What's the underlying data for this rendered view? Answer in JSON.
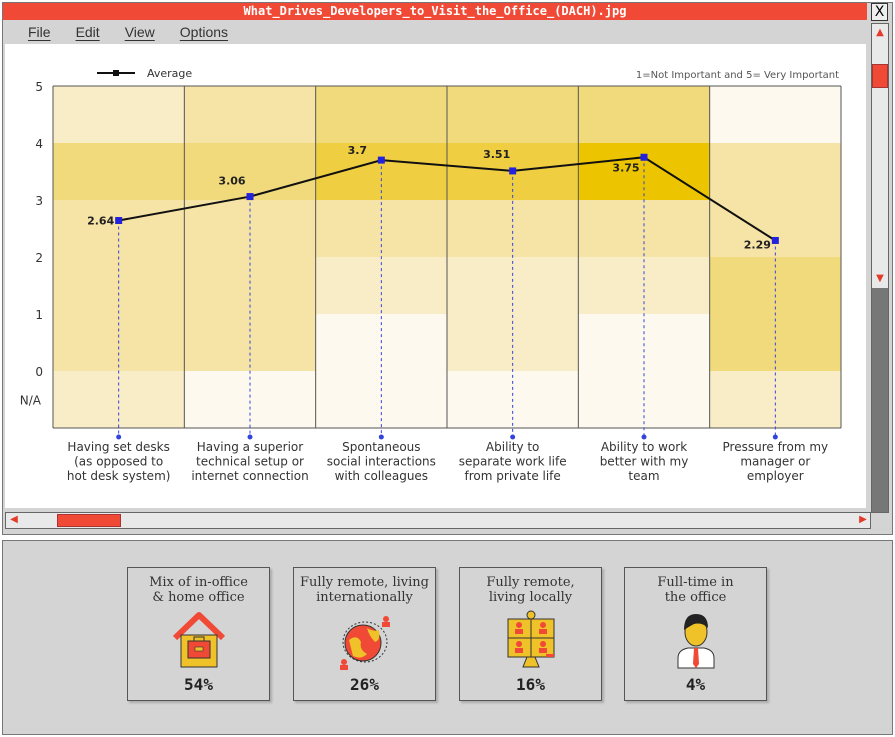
{
  "window": {
    "title": "What_Drives_Developers_to_Visit_the_Office_(DACH).jpg",
    "close": "X"
  },
  "menu": [
    "File",
    "Edit",
    "View",
    "Options"
  ],
  "chart_data": {
    "type": "line",
    "legend": "Average",
    "legend_position": "top-left",
    "note": "1=Not Important and 5= Very Important",
    "y_ticks": [
      "5",
      "4",
      "3",
      "2",
      "1",
      "0",
      "N/A"
    ],
    "ylim": [
      0,
      5
    ],
    "categories": [
      [
        "Having set desks",
        "(as opposed to",
        "hot desk system)"
      ],
      [
        "Having a superior",
        "technical setup or",
        "internet connection"
      ],
      [
        "Spontaneous",
        "social interactions",
        "with colleagues"
      ],
      [
        "Ability to",
        "separate work life",
        "from private life"
      ],
      [
        "Ability to work",
        "better with my",
        "team"
      ],
      [
        "Pressure from my",
        "manager or",
        "employer"
      ]
    ],
    "series": [
      {
        "name": "Average",
        "values": [
          2.64,
          3.06,
          3.7,
          3.51,
          3.75,
          2.29
        ],
        "labels": [
          "2.64",
          "3.06",
          "3.7",
          "3.51",
          "3.75",
          "2.29"
        ]
      }
    ],
    "heatmap_bands": [
      "5-4",
      "4-3",
      "3-2",
      "2-1",
      "1-0",
      "N/A"
    ],
    "heatmap_intensity": [
      [
        1,
        3,
        2,
        2,
        2,
        1
      ],
      [
        2,
        3,
        2,
        2,
        2,
        0
      ],
      [
        3,
        4,
        2,
        1,
        0,
        0
      ],
      [
        3,
        4,
        2,
        1,
        1,
        0
      ],
      [
        3,
        5,
        2,
        1,
        0,
        0
      ],
      [
        0,
        2,
        2,
        3,
        3,
        1
      ]
    ],
    "colors": {
      "line": "#111111",
      "marker": "#2222dd",
      "intensity": [
        "#fdf9ee",
        "#f9edc8",
        "#f6e3a6",
        "#f1da7c",
        "#efce42",
        "#ecc500"
      ]
    }
  },
  "cards": [
    {
      "label": [
        "Mix of in-office",
        "& home office"
      ],
      "value": "54%",
      "icon": "house-briefcase-icon"
    },
    {
      "label": [
        "Fully remote, living",
        "internationally"
      ],
      "value": "26%",
      "icon": "globe-people-icon"
    },
    {
      "label": [
        "Fully remote,",
        "living locally"
      ],
      "value": "16%",
      "icon": "video-call-icon"
    },
    {
      "label": [
        "Full-time in",
        "the office"
      ],
      "value": "4%",
      "icon": "office-worker-icon"
    }
  ],
  "colors": {
    "accent": "#f04a37",
    "yellow": "#efc22a"
  }
}
